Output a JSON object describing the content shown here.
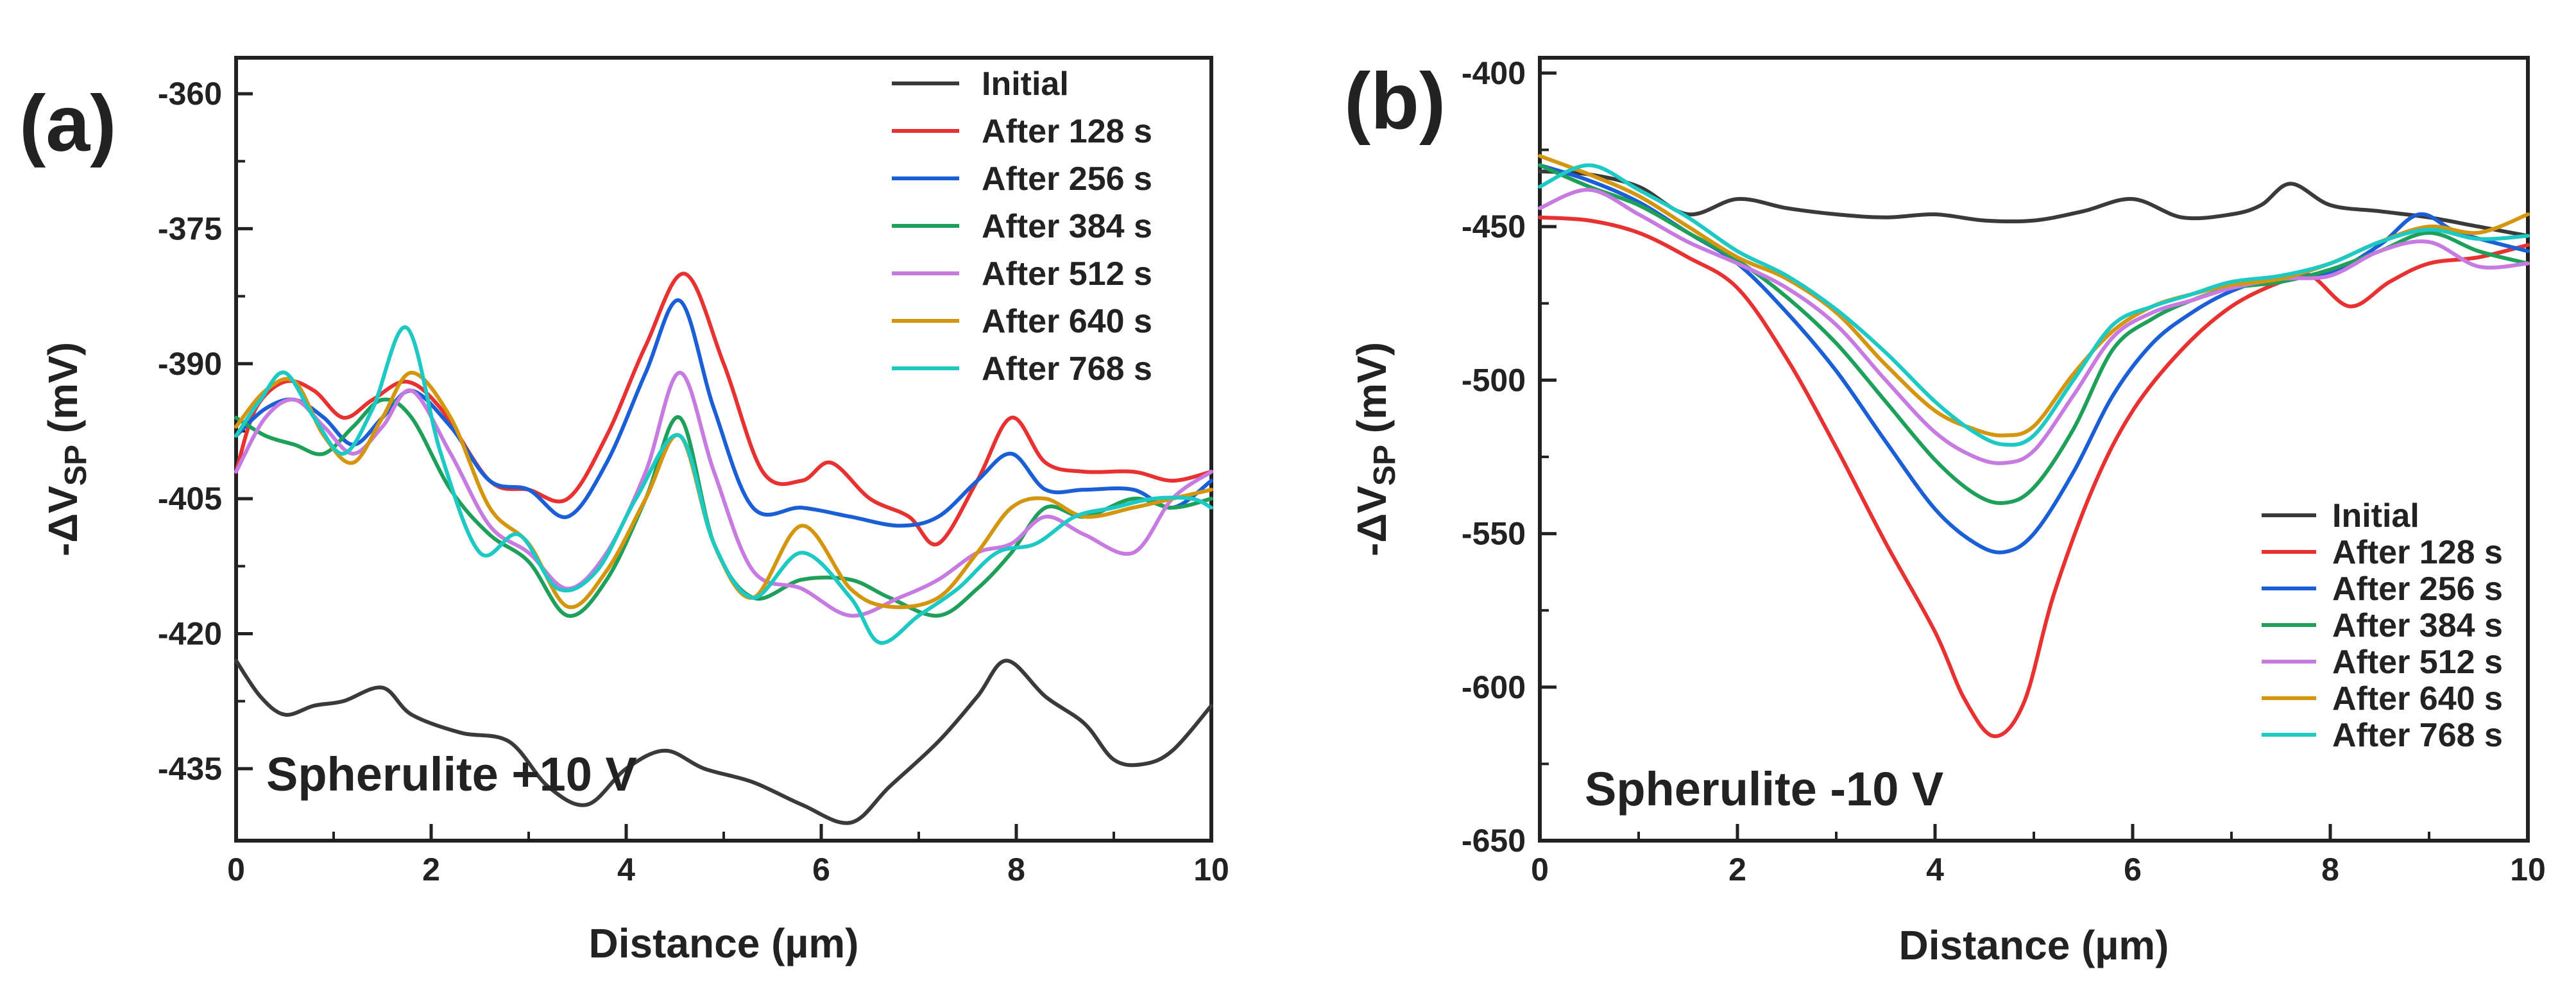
{
  "chart_data": [
    {
      "type": "line",
      "panel_label": "(a)",
      "annotation": "Spherulite +10 V",
      "xlabel": "Distance (µm)",
      "ylabel_main": "-ΔV",
      "ylabel_sub": "SP",
      "ylabel_unit": " (mV)",
      "xlim": [
        0,
        10
      ],
      "ylim": [
        -443,
        -356
      ],
      "xticks": [
        0,
        2,
        4,
        6,
        8,
        10
      ],
      "yticks": [
        -360,
        -375,
        -390,
        -405,
        -420,
        -435
      ],
      "legend_position": "top-right",
      "series": [
        {
          "name": "Initial",
          "color": "#3a3a3a",
          "x": [
            0,
            0.25,
            0.5,
            0.8,
            1.1,
            1.5,
            1.8,
            2.3,
            2.8,
            3.2,
            3.6,
            4.0,
            4.4,
            4.8,
            5.3,
            5.8,
            6.3,
            6.7,
            7.2,
            7.6,
            7.9,
            8.3,
            8.7,
            9.0,
            9.3,
            9.6,
            10.0
          ],
          "y": [
            -423,
            -427,
            -429,
            -428,
            -427.5,
            -426,
            -429,
            -431,
            -432,
            -437,
            -439,
            -435,
            -433,
            -435,
            -436.5,
            -439,
            -441,
            -437,
            -432,
            -427,
            -423,
            -427,
            -430,
            -434,
            -434.5,
            -433,
            -428
          ]
        },
        {
          "name": "After 128 s",
          "color": "#e83131",
          "x": [
            0,
            0.2,
            0.5,
            0.8,
            1.1,
            1.4,
            1.75,
            2.1,
            2.6,
            3.0,
            3.4,
            3.8,
            4.2,
            4.6,
            5.0,
            5.4,
            5.8,
            6.1,
            6.5,
            6.9,
            7.2,
            7.6,
            7.95,
            8.3,
            8.7,
            9.2,
            9.6,
            10.0
          ],
          "y": [
            -402,
            -395,
            -392,
            -393,
            -396,
            -394,
            -392,
            -395,
            -403,
            -404,
            -405,
            -398,
            -388,
            -380,
            -390,
            -402,
            -403,
            -401,
            -405,
            -407,
            -410,
            -403,
            -396,
            -401,
            -402,
            -402,
            -403,
            -402
          ]
        },
        {
          "name": "After 256 s",
          "color": "#1a5fd6",
          "x": [
            0,
            0.3,
            0.6,
            0.9,
            1.2,
            1.5,
            1.8,
            2.2,
            2.6,
            3.0,
            3.4,
            3.8,
            4.2,
            4.55,
            4.9,
            5.3,
            5.8,
            6.3,
            6.8,
            7.2,
            7.6,
            7.95,
            8.3,
            8.7,
            9.2,
            9.6,
            10.0
          ],
          "y": [
            -398,
            -395,
            -394,
            -396,
            -399,
            -396,
            -393,
            -397,
            -403,
            -404,
            -407,
            -401,
            -391,
            -383,
            -395,
            -406,
            -406,
            -407,
            -408,
            -407,
            -403,
            -400,
            -404,
            -404,
            -404,
            -406,
            -403
          ]
        },
        {
          "name": "After 384 s",
          "color": "#1ea05b",
          "x": [
            0,
            0.3,
            0.6,
            0.9,
            1.2,
            1.5,
            1.8,
            2.2,
            2.6,
            3.0,
            3.4,
            3.8,
            4.2,
            4.55,
            4.9,
            5.3,
            5.8,
            6.3,
            6.7,
            7.2,
            7.6,
            7.95,
            8.3,
            8.7,
            9.2,
            9.6,
            10.0
          ],
          "y": [
            -396,
            -398,
            -399,
            -400,
            -397,
            -394,
            -396,
            -404,
            -409,
            -412,
            -418,
            -414,
            -405,
            -396,
            -410,
            -416,
            -414,
            -414,
            -416,
            -418,
            -415,
            -411,
            -406,
            -407,
            -405,
            -406,
            -405
          ]
        },
        {
          "name": "After 512 s",
          "color": "#c77be0",
          "x": [
            0,
            0.3,
            0.6,
            0.9,
            1.2,
            1.5,
            1.8,
            2.2,
            2.6,
            3.0,
            3.4,
            3.8,
            4.2,
            4.55,
            4.9,
            5.3,
            5.8,
            6.3,
            6.8,
            7.2,
            7.6,
            7.95,
            8.3,
            8.7,
            9.2,
            9.6,
            10.0
          ],
          "y": [
            -402,
            -396,
            -394,
            -397,
            -400,
            -397,
            -393,
            -400,
            -408,
            -411,
            -415,
            -411,
            -402,
            -391,
            -402,
            -413,
            -415,
            -418,
            -416,
            -414,
            -411,
            -410,
            -407,
            -409,
            -411,
            -405,
            -402
          ]
        },
        {
          "name": "After 640 s",
          "color": "#d4960e",
          "x": [
            0,
            0.3,
            0.6,
            0.9,
            1.2,
            1.5,
            1.8,
            2.2,
            2.6,
            3.0,
            3.4,
            3.8,
            4.2,
            4.55,
            4.9,
            5.3,
            5.8,
            6.3,
            6.7,
            7.2,
            7.6,
            7.95,
            8.3,
            8.7,
            9.2,
            9.6,
            10.0
          ],
          "y": [
            -397,
            -393,
            -392,
            -398,
            -401,
            -396,
            -391,
            -396,
            -406,
            -410,
            -417,
            -413,
            -405,
            -398,
            -410,
            -416,
            -408,
            -415,
            -417,
            -416,
            -411,
            -406,
            -405,
            -407,
            -406,
            -405,
            -404
          ]
        },
        {
          "name": "After 768 s",
          "color": "#1ec9c4",
          "x": [
            0,
            0.25,
            0.5,
            0.8,
            1.1,
            1.4,
            1.75,
            2.1,
            2.5,
            2.9,
            3.3,
            3.7,
            4.1,
            4.55,
            4.9,
            5.3,
            5.8,
            6.3,
            6.6,
            7.0,
            7.4,
            7.8,
            8.2,
            8.6,
            9.0,
            9.4,
            9.8,
            10.0
          ],
          "y": [
            -398,
            -394,
            -391,
            -396,
            -400,
            -395,
            -386,
            -400,
            -411,
            -409,
            -415,
            -413,
            -405,
            -398,
            -410,
            -416,
            -411,
            -416,
            -421,
            -418,
            -415,
            -411,
            -410,
            -407,
            -406,
            -405,
            -405,
            -406
          ]
        }
      ]
    },
    {
      "type": "line",
      "panel_label": "(b)",
      "annotation": "Spherulite -10 V",
      "xlabel": "Distance (µm)",
      "ylabel_main": "-ΔV",
      "ylabel_sub": "SP",
      "ylabel_unit": " (mV)",
      "xlim": [
        0,
        10
      ],
      "ylim": [
        -650,
        -395
      ],
      "xticks": [
        0,
        2,
        4,
        6,
        8,
        10
      ],
      "yticks": [
        -400,
        -450,
        -500,
        -550,
        -600,
        -650
      ],
      "legend_position": "bottom-right",
      "series": [
        {
          "name": "Initial",
          "color": "#3a3a3a",
          "x": [
            0,
            0.5,
            1.0,
            1.5,
            2.0,
            2.5,
            3.0,
            3.5,
            4.0,
            4.5,
            5.0,
            5.5,
            6.0,
            6.5,
            7.0,
            7.3,
            7.6,
            8.0,
            8.5,
            9.0,
            9.5,
            10.0
          ],
          "y": [
            -432,
            -433,
            -437,
            -446,
            -441,
            -444,
            -446,
            -447,
            -446,
            -448,
            -448,
            -445,
            -441,
            -447,
            -446,
            -443,
            -436,
            -443,
            -445,
            -447,
            -450,
            -453
          ]
        },
        {
          "name": "After 128 s",
          "color": "#e83131",
          "x": [
            0,
            0.5,
            1.0,
            1.5,
            2.0,
            2.5,
            3.0,
            3.5,
            4.0,
            4.3,
            4.6,
            4.9,
            5.2,
            5.6,
            6.0,
            6.5,
            7.0,
            7.5,
            7.8,
            8.2,
            8.6,
            9.0,
            9.5,
            10.0
          ],
          "y": [
            -447,
            -448,
            -452,
            -460,
            -470,
            -493,
            -522,
            -553,
            -582,
            -604,
            -616,
            -605,
            -570,
            -535,
            -510,
            -490,
            -476,
            -468,
            -466,
            -476,
            -468,
            -462,
            -460,
            -456
          ]
        },
        {
          "name": "After 256 s",
          "color": "#1a5fd6",
          "x": [
            0,
            0.5,
            1.0,
            1.5,
            2.0,
            2.5,
            3.0,
            3.5,
            4.0,
            4.4,
            4.7,
            5.0,
            5.4,
            5.8,
            6.2,
            6.6,
            7.0,
            7.5,
            8.0,
            8.5,
            8.9,
            9.3,
            10.0
          ],
          "y": [
            -430,
            -435,
            -442,
            -452,
            -462,
            -478,
            -497,
            -520,
            -542,
            -553,
            -556,
            -550,
            -530,
            -505,
            -488,
            -478,
            -471,
            -466,
            -465,
            -456,
            -446,
            -452,
            -458
          ]
        },
        {
          "name": "After 384 s",
          "color": "#1ea05b",
          "x": [
            0,
            0.5,
            1.0,
            1.5,
            2.0,
            2.5,
            3.0,
            3.5,
            4.0,
            4.4,
            4.7,
            5.0,
            5.4,
            5.8,
            6.2,
            6.6,
            7.0,
            7.5,
            8.0,
            8.5,
            9.0,
            9.5,
            10.0
          ],
          "y": [
            -430,
            -437,
            -443,
            -452,
            -461,
            -473,
            -488,
            -507,
            -526,
            -537,
            -540,
            -535,
            -516,
            -490,
            -480,
            -474,
            -470,
            -468,
            -464,
            -458,
            -452,
            -458,
            -462
          ]
        },
        {
          "name": "After 512 s",
          "color": "#c77be0",
          "x": [
            0,
            0.5,
            1.0,
            1.5,
            2.0,
            2.5,
            3.0,
            3.5,
            4.0,
            4.4,
            4.7,
            5.0,
            5.4,
            5.8,
            6.2,
            6.6,
            7.0,
            7.5,
            8.0,
            8.5,
            9.0,
            9.5,
            10.0
          ],
          "y": [
            -444,
            -438,
            -446,
            -455,
            -462,
            -470,
            -482,
            -500,
            -517,
            -525,
            -527,
            -523,
            -505,
            -486,
            -478,
            -474,
            -470,
            -467,
            -466,
            -458,
            -455,
            -463,
            -462
          ]
        },
        {
          "name": "After 640 s",
          "color": "#d4960e",
          "x": [
            0,
            0.5,
            1.0,
            1.5,
            2.0,
            2.5,
            3.0,
            3.5,
            4.0,
            4.4,
            4.7,
            5.0,
            5.4,
            5.8,
            6.2,
            6.6,
            7.0,
            7.5,
            8.0,
            8.5,
            9.0,
            9.5,
            10.0
          ],
          "y": [
            -427,
            -433,
            -440,
            -450,
            -460,
            -467,
            -478,
            -495,
            -510,
            -516,
            -518,
            -515,
            -498,
            -484,
            -476,
            -472,
            -469,
            -467,
            -462,
            -455,
            -450,
            -452,
            -446
          ]
        },
        {
          "name": "After 768 s",
          "color": "#1ec9c4",
          "x": [
            0,
            0.5,
            1.0,
            1.5,
            2.0,
            2.5,
            3.0,
            3.5,
            4.0,
            4.4,
            4.7,
            5.0,
            5.4,
            5.8,
            6.2,
            6.6,
            7.0,
            7.5,
            8.0,
            8.5,
            9.0,
            9.5,
            10.0
          ],
          "y": [
            -437,
            -430,
            -438,
            -447,
            -458,
            -466,
            -477,
            -491,
            -507,
            -517,
            -521,
            -518,
            -500,
            -482,
            -476,
            -472,
            -468,
            -466,
            -462,
            -455,
            -451,
            -454,
            -453
          ]
        }
      ]
    }
  ]
}
